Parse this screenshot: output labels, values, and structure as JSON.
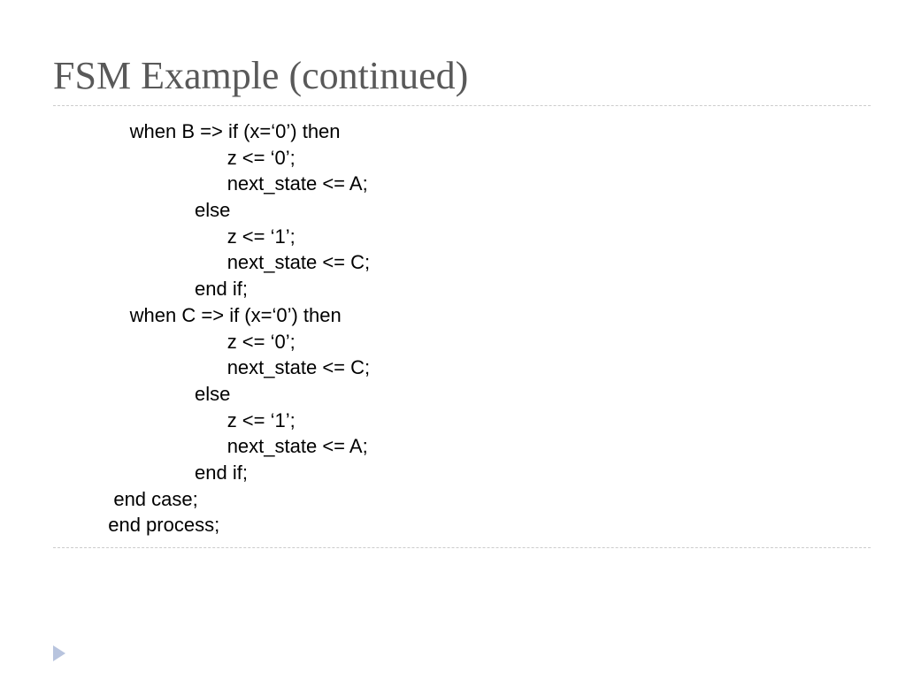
{
  "title": "FSM Example (continued)",
  "code": {
    "lines": [
      "      when B => if (x=‘0’) then",
      "                        z <= ‘0’;",
      "                        next_state <= A;",
      "                  else",
      "                        z <= ‘1’;",
      "                        next_state <= C;",
      "                  end if;",
      "      when C => if (x=‘0’) then",
      "                        z <= ‘0’;",
      "                        next_state <= C;",
      "                  else",
      "                        z <= ‘1’;",
      "                        next_state <= A;",
      "                  end if;",
      "   end case;",
      "  end process;"
    ]
  },
  "styles": {
    "title_color": "#595959",
    "title_fontsize": 44,
    "code_fontsize": 22,
    "code_color": "#000000",
    "divider_color": "#cccccc",
    "arrow_color": "#b8c4de",
    "background_color": "#ffffff"
  }
}
